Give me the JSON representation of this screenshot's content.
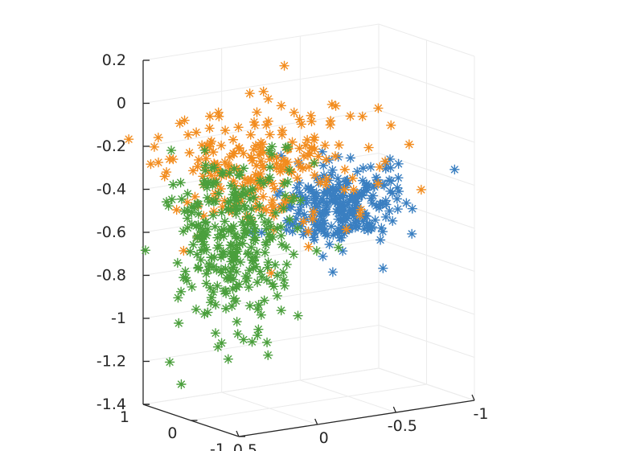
{
  "chart_data": {
    "type": "scatter",
    "view": "3d",
    "marker": "asterisk",
    "grid": true,
    "axes": {
      "x": {
        "lim": [
          -1,
          0.5
        ],
        "ticks": [
          0.5,
          0,
          -0.5,
          -1
        ],
        "tick_labels": [
          "0.5",
          "0",
          "-0.5",
          "-1"
        ]
      },
      "y": {
        "lim": [
          -1,
          1
        ],
        "ticks": [
          -1,
          0,
          1
        ],
        "tick_labels": [
          "-1",
          "0",
          "1"
        ]
      },
      "z": {
        "lim": [
          -1.4,
          0.2
        ],
        "ticks": [
          0.2,
          0,
          -0.2,
          -0.4,
          -0.6,
          -0.8,
          -1,
          -1.2,
          -1.4
        ],
        "tick_labels": [
          "0.2",
          "0",
          "-0.2",
          "-0.4",
          "-0.6",
          "-0.8",
          "-1",
          "-1.2",
          "-1.4"
        ]
      }
    },
    "series": [
      {
        "color": "#3a7fc1",
        "center": [
          -0.42,
          -0.1,
          -0.5
        ],
        "spread": [
          0.18,
          0.25,
          0.09
        ],
        "count": 260,
        "points_sample": [
          [
            -0.45,
            -0.1,
            -0.52
          ],
          [
            -0.3,
            0.05,
            -0.48
          ],
          [
            -0.55,
            -0.2,
            -0.55
          ],
          [
            -0.4,
            0.1,
            -0.45
          ],
          [
            -0.5,
            -0.05,
            -0.6
          ]
        ]
      },
      {
        "color": "#f28c1e",
        "center": [
          0.0,
          0.1,
          -0.28
        ],
        "spread": [
          0.32,
          0.35,
          0.14
        ],
        "count": 230,
        "points_sample": [
          [
            0.1,
            0.3,
            -0.2
          ],
          [
            -0.2,
            0.0,
            -0.3
          ],
          [
            0.2,
            0.4,
            -0.05
          ],
          [
            -0.6,
            -0.3,
            -0.4
          ],
          [
            0.05,
            -0.2,
            -0.75
          ]
        ]
      },
      {
        "color": "#4a9f3c",
        "center": [
          0.18,
          0.15,
          -0.62
        ],
        "spread": [
          0.18,
          0.25,
          0.2
        ],
        "count": 300,
        "points_sample": [
          [
            0.2,
            0.3,
            -0.6
          ],
          [
            0.1,
            -0.1,
            -0.9
          ],
          [
            0.3,
            0.5,
            -0.5
          ],
          [
            0.05,
            0.2,
            -1.1
          ],
          [
            0.25,
            0.4,
            -0.7
          ]
        ]
      }
    ]
  }
}
